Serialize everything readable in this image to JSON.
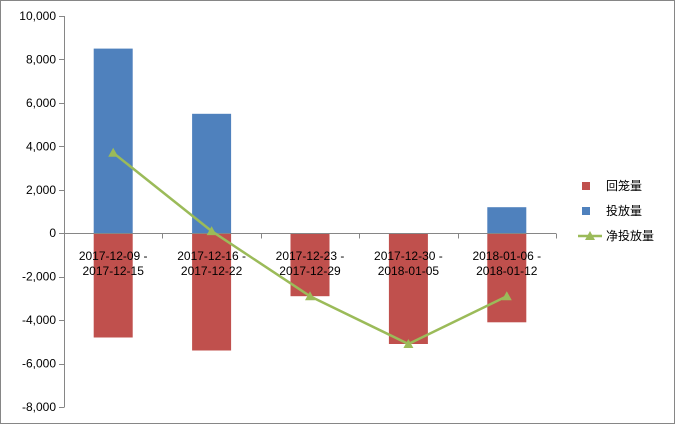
{
  "chart_data": {
    "type": "bar",
    "stacked": true,
    "categories": [
      "2017-12-09 - 2017-12-15",
      "2017-12-16 - 2017-12-22",
      "2017-12-23 - 2017-12-29",
      "2017-12-30 - 2018-01-05",
      "2018-01-06 - 2018-01-12"
    ],
    "series": [
      {
        "name": "回笼量",
        "type": "bar",
        "color": "#C0504D",
        "values": [
          -4800,
          -5400,
          -2900,
          -5100,
          -4100
        ]
      },
      {
        "name": "投放量",
        "type": "bar",
        "color": "#4F81BD",
        "values": [
          8500,
          5500,
          0,
          0,
          1200
        ]
      },
      {
        "name": "净投放量",
        "type": "line",
        "marker": "triangle",
        "color": "#9BBB59",
        "values": [
          3700,
          100,
          -2900,
          -5100,
          -2900
        ]
      }
    ],
    "ylim": [
      -8000,
      10000
    ],
    "ytick_labels": [
      "10,000",
      "8,000",
      "6,000",
      "4,000",
      "2,000",
      "0",
      "-2,000",
      "-4,000",
      "-6,000",
      "-8,000"
    ],
    "grid": false,
    "legend": "right"
  }
}
